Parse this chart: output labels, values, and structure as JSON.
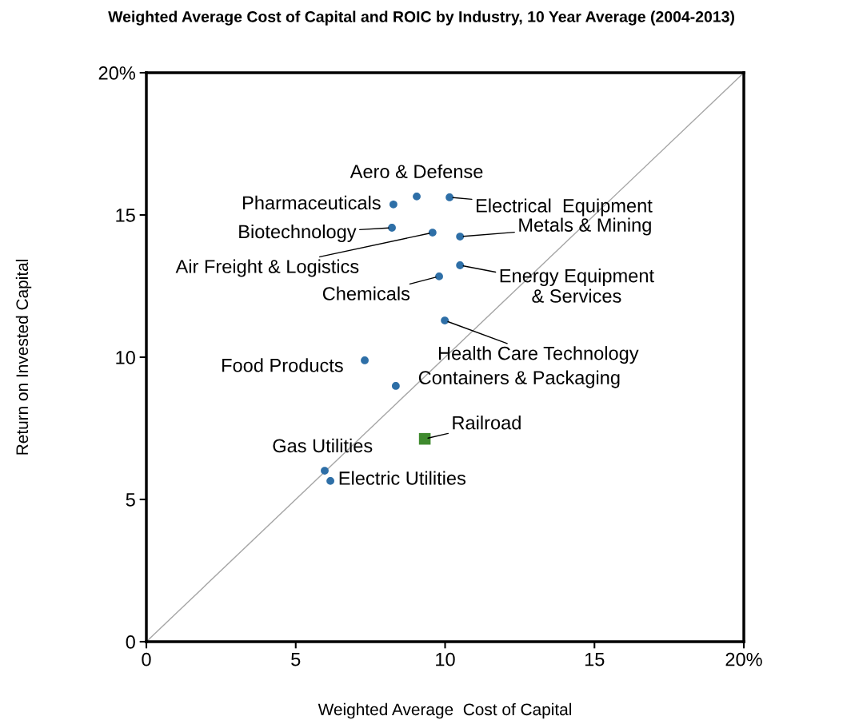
{
  "chart_data": {
    "type": "scatter",
    "title": "Weighted Average Cost of Capital and ROIC by Industry, 10 Year Average (2004-2013)",
    "xlabel": "Weighted Average  Cost of Capital",
    "ylabel": "Return on Invested Capital",
    "series": [
      {
        "type": "line",
        "x": [
          0,
          20
        ],
        "values": [
          0,
          20
        ],
        "color": "#a6a6a6",
        "marker": "none",
        "line_style": "solid"
      },
      {
        "x": [
          9.05,
          8.27,
          10.15,
          8.22,
          9.58,
          10.5,
          10.5,
          9.8,
          9.99,
          7.31,
          8.35,
          5.97,
          6.16
        ],
        "values": [
          15.65,
          15.37,
          15.62,
          14.55,
          14.38,
          14.24,
          13.23,
          12.84,
          11.29,
          9.89,
          8.99,
          6.01,
          5.65
        ],
        "color": "#2e6fa7",
        "marker": "circle"
      },
      {
        "x": [
          9.32
        ],
        "values": [
          7.13
        ],
        "color": "#3f8a2e",
        "marker": "square"
      }
    ],
    "annotations": [
      {
        "text": "Aero & Defense",
        "x": 9.05,
        "y": 15.65
      },
      {
        "text": "Pharmaceuticals",
        "x": 8.27,
        "y": 15.37
      },
      {
        "text": "Electrical  Equipment",
        "x": 10.15,
        "y": 15.62
      },
      {
        "text": "Biotechnology",
        "x": 8.22,
        "y": 14.55
      },
      {
        "text": "Air Freight & Logistics",
        "x": 9.58,
        "y": 14.38
      },
      {
        "text": "Metals & Mining",
        "x": 10.5,
        "y": 14.24
      },
      {
        "text": "Energy Equipment\n& Services",
        "x": 10.5,
        "y": 13.23
      },
      {
        "text": "Chemicals",
        "x": 9.8,
        "y": 12.84
      },
      {
        "text": "Health Care Technology",
        "x": 9.99,
        "y": 11.29
      },
      {
        "text": "Food Products",
        "x": 7.31,
        "y": 9.89
      },
      {
        "text": "Containers & Packaging",
        "x": 8.35,
        "y": 8.99
      },
      {
        "text": "Gas Utilities",
        "x": 5.97,
        "y": 6.01
      },
      {
        "text": "Electric Utilities",
        "x": 6.16,
        "y": 5.65
      },
      {
        "text": "Railroad",
        "x": 9.32,
        "y": 7.13
      }
    ],
    "xlim": [
      0,
      20
    ],
    "ylim": [
      0,
      20
    ],
    "xticks": [
      0,
      5,
      10,
      15,
      {
        "value": 20,
        "label": "20%"
      }
    ],
    "yticks": [
      0,
      5,
      10,
      15,
      {
        "value": 20,
        "label": "20%"
      }
    ],
    "grid": false,
    "legend": false
  }
}
